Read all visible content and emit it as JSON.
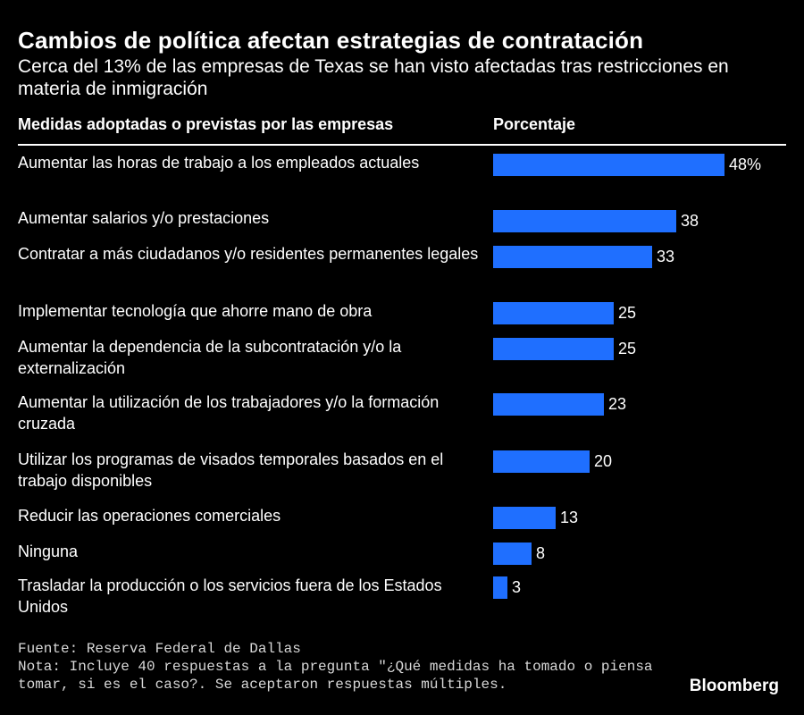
{
  "title": "Cambios de política afectan estrategias de contratación",
  "subtitle": "Cerca del 13% de las empresas de Texas se han visto afectadas tras restricciones en materia de inmigración",
  "table_header": {
    "label": "Medidas adoptadas o previstas por las empresas",
    "value": "Porcentaje"
  },
  "chart_data": {
    "type": "bar",
    "orientation": "horizontal",
    "title": "Cambios de política afectan estrategias de contratación",
    "xlabel": "Porcentaje",
    "ylabel": "Medidas adoptadas o previstas por las empresas",
    "xlim": [
      0,
      48
    ],
    "unit": "%",
    "categories": [
      "Aumentar las horas de trabajo a los empleados actuales",
      "Aumentar salarios y/o prestaciones",
      "Contratar a más ciudadanos y/o residentes permanentes legales",
      "Implementar tecnología que ahorre mano de obra",
      "Aumentar la dependencia de la subcontratación y/o la externalización",
      "Aumentar la utilización de los trabajadores y/o la formación cruzada",
      "Utilizar los programas de visados temporales basados en el trabajo disponibles",
      "Reducir las operaciones comerciales",
      "Ninguna",
      "Trasladar la producción o los servicios fuera de los Estados Unidos"
    ],
    "values": [
      48,
      38,
      33,
      25,
      25,
      23,
      20,
      13,
      8,
      3
    ],
    "value_labels": [
      "48%",
      "38",
      "33",
      "25",
      "25",
      "23",
      "20",
      "13",
      "8",
      "3"
    ]
  },
  "colors": {
    "bar": "#1f6fff",
    "background": "#000000"
  },
  "footer": {
    "source": "Fuente: Reserva Federal de Dallas",
    "note": "Nota: Incluye 40 respuestas a la pregunta \"¿Qué medidas ha tomado o piensa tomar, si es el caso?. Se aceptaron respuestas múltiples."
  },
  "brand": "Bloomberg"
}
